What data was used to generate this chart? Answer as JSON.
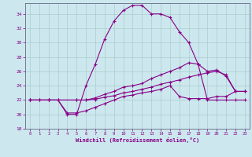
{
  "xlabel": "Windchill (Refroidissement éolien,°C)",
  "bg_color": "#cce8ee",
  "line_color": "#880088",
  "grid_color": "#aacccc",
  "xmin": -0.5,
  "xmax": 23.5,
  "ymin": 18,
  "ymax": 35.5,
  "yticks": [
    18,
    20,
    22,
    24,
    26,
    28,
    30,
    32,
    34
  ],
  "xticks": [
    0,
    1,
    2,
    3,
    4,
    5,
    6,
    7,
    8,
    9,
    10,
    11,
    12,
    13,
    14,
    15,
    16,
    17,
    18,
    19,
    20,
    21,
    22,
    23
  ],
  "series1_x": [
    0,
    1,
    2,
    3,
    4,
    5,
    6,
    7,
    8,
    9,
    10,
    11,
    12,
    13,
    14,
    15,
    16,
    17,
    18,
    19,
    20,
    21,
    22,
    23
  ],
  "series1_y": [
    22,
    22,
    22,
    22,
    20,
    20,
    24,
    27,
    30.5,
    33,
    34.5,
    35.2,
    35.2,
    34,
    34,
    33.5,
    31.5,
    30,
    27,
    22,
    22,
    22,
    22,
    22
  ],
  "series2_x": [
    0,
    2,
    5,
    6,
    7,
    8,
    9,
    10,
    11,
    12,
    13,
    14,
    15,
    16,
    17,
    18,
    19,
    20,
    21,
    22,
    23
  ],
  "series2_y": [
    22,
    22,
    22,
    22,
    22.3,
    22.8,
    23.2,
    23.8,
    24.0,
    24.3,
    25,
    25.5,
    26,
    26.5,
    27.2,
    27,
    26,
    26.2,
    25.3,
    23.2,
    23.2
  ],
  "series3_x": [
    0,
    2,
    5,
    6,
    7,
    8,
    9,
    10,
    11,
    12,
    13,
    14,
    15,
    16,
    17,
    18,
    19,
    20,
    21,
    22,
    23
  ],
  "series3_y": [
    22,
    22,
    22,
    22,
    22.1,
    22.4,
    22.6,
    23.0,
    23.2,
    23.5,
    23.8,
    24.2,
    24.5,
    24.8,
    25.2,
    25.5,
    25.8,
    26.0,
    25.5,
    23.2,
    23.2
  ],
  "series4_x": [
    0,
    1,
    2,
    3,
    4,
    5,
    6,
    7,
    8,
    9,
    10,
    11,
    12,
    13,
    14,
    15,
    16,
    17,
    18,
    19,
    20,
    21,
    22,
    23
  ],
  "series4_y": [
    22,
    22,
    22,
    22,
    20.2,
    20.2,
    20.5,
    21,
    21.5,
    22,
    22.5,
    22.7,
    23,
    23.2,
    23.5,
    24,
    22.5,
    22.2,
    22.2,
    22.2,
    22.5,
    22.5,
    23.2,
    23.2
  ]
}
